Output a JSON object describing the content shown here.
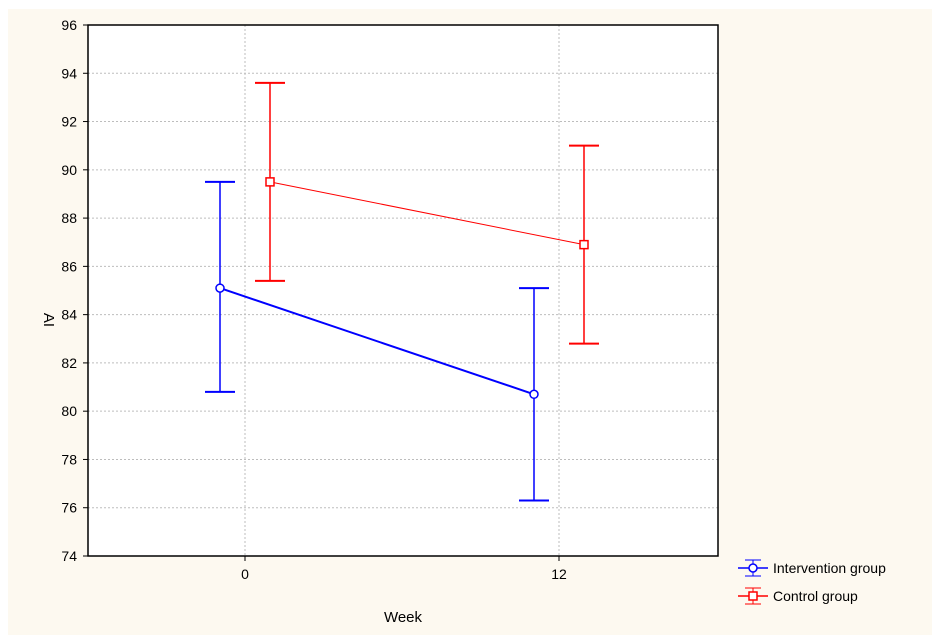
{
  "colors": {
    "background": "#fdf9f0",
    "plot_background": "#ffffff",
    "grid": "#bdbdbd",
    "axis": "#000000",
    "intervention": "#0000ff",
    "control": "#ff0000"
  },
  "chart_data": {
    "type": "line",
    "title": "",
    "xlabel": "Week",
    "ylabel": "AI",
    "categories": [
      "0",
      "12"
    ],
    "ylim": [
      74,
      96
    ],
    "yticks": [
      74,
      76,
      78,
      80,
      82,
      84,
      86,
      88,
      90,
      92,
      94,
      96
    ],
    "grid": true,
    "legend_position": "bottom-right",
    "series": [
      {
        "name": "Intervention group",
        "color": "#0000ff",
        "marker": "circle",
        "values": [
          85.1,
          80.7
        ],
        "lower": [
          80.8,
          76.3
        ],
        "upper": [
          89.5,
          85.1
        ]
      },
      {
        "name": "Control group",
        "color": "#ff0000",
        "marker": "square",
        "values": [
          89.5,
          86.9
        ],
        "lower": [
          85.4,
          82.8
        ],
        "upper": [
          93.6,
          91.0
        ]
      }
    ]
  }
}
